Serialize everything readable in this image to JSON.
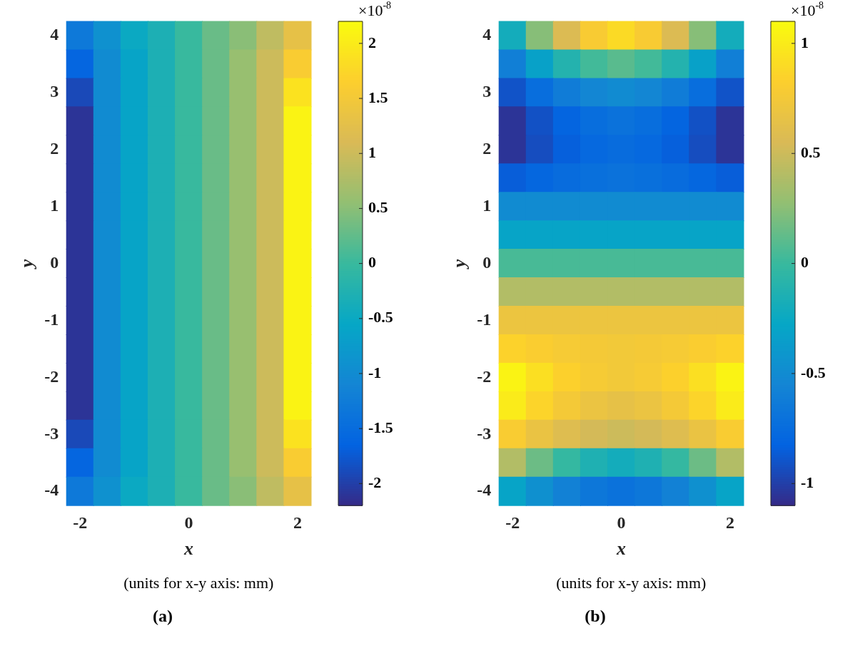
{
  "chart_data": [
    {
      "type": "heatmap",
      "title": "(a)",
      "xlabel": "x",
      "ylabel": "y",
      "clabel": "×10$^{-8}$",
      "annotations": [
        "(units for x-y axis: mm)"
      ],
      "categories": [
        "-2",
        null,
        null,
        null,
        "0",
        null,
        null,
        null,
        "2"
      ],
      "y_categories": [
        "4",
        null,
        "3",
        null,
        "2",
        null,
        "1",
        null,
        "0",
        null,
        "-1",
        null,
        "-2",
        null,
        "-3",
        null,
        "-4"
      ],
      "clim": [
        -2.2,
        2.2
      ],
      "cticks": [
        -2,
        -1.5,
        -1,
        -0.5,
        0,
        0.5,
        1,
        1.5,
        2
      ],
      "cells": [
        [
          -1.3,
          -0.9,
          -0.5,
          -0.3,
          0,
          0.3,
          0.5,
          0.9,
          1.3
        ],
        [
          -1.6,
          -1.0,
          -0.6,
          -0.3,
          0,
          0.3,
          0.6,
          1.0,
          1.6
        ],
        [
          -1.9,
          -1.0,
          -0.6,
          -0.3,
          0,
          0.3,
          0.6,
          1.0,
          1.9
        ],
        [
          -2.1,
          -1.0,
          -0.6,
          -0.3,
          0,
          0.3,
          0.6,
          1.0,
          2.1
        ],
        [
          -2.1,
          -1.0,
          -0.6,
          -0.3,
          0,
          0.3,
          0.6,
          1.0,
          2.1
        ],
        [
          -2.1,
          -1.0,
          -0.6,
          -0.3,
          0,
          0.3,
          0.6,
          1.0,
          2.1
        ],
        [
          -2.1,
          -1.0,
          -0.6,
          -0.3,
          0,
          0.3,
          0.6,
          1.0,
          2.1
        ],
        [
          -2.1,
          -1.0,
          -0.6,
          -0.3,
          0,
          0.3,
          0.6,
          1.0,
          2.1
        ],
        [
          -2.1,
          -1.0,
          -0.6,
          -0.3,
          0,
          0.3,
          0.6,
          1.0,
          2.1
        ],
        [
          -2.1,
          -1.0,
          -0.6,
          -0.3,
          0,
          0.3,
          0.6,
          1.0,
          2.1
        ],
        [
          -2.1,
          -1.0,
          -0.6,
          -0.3,
          0,
          0.3,
          0.6,
          1.0,
          2.1
        ],
        [
          -2.1,
          -1.0,
          -0.6,
          -0.3,
          0,
          0.3,
          0.6,
          1.0,
          2.1
        ],
        [
          -2.1,
          -1.0,
          -0.6,
          -0.3,
          0,
          0.3,
          0.6,
          1.0,
          2.1
        ],
        [
          -2.1,
          -1.0,
          -0.6,
          -0.3,
          0,
          0.3,
          0.6,
          1.0,
          2.1
        ],
        [
          -1.9,
          -1.0,
          -0.6,
          -0.3,
          0,
          0.3,
          0.6,
          1.0,
          1.9
        ],
        [
          -1.6,
          -1.0,
          -0.6,
          -0.3,
          0,
          0.3,
          0.6,
          1.0,
          1.6
        ],
        [
          -1.3,
          -0.9,
          -0.5,
          -0.3,
          0,
          0.3,
          0.5,
          0.9,
          1.3
        ]
      ]
    },
    {
      "type": "heatmap",
      "title": "(b)",
      "xlabel": "x",
      "ylabel": "y",
      "clabel": "×10$^{-8}$",
      "annotations": [
        "(units for x-y axis: mm)"
      ],
      "categories": [
        "-2",
        null,
        null,
        null,
        "0",
        null,
        null,
        null,
        "2"
      ],
      "y_categories": [
        "4",
        null,
        "3",
        null,
        "2",
        null,
        "1",
        null,
        "0",
        null,
        "-1",
        null,
        "-2",
        null,
        "-3",
        null,
        "-4"
      ],
      "clim": [
        -1.1,
        1.1
      ],
      "cticks": [
        -1,
        -0.5,
        0,
        0.5,
        1
      ],
      "cells": [
        [
          -0.2,
          0.24,
          0.57,
          0.79,
          0.9,
          0.79,
          0.57,
          0.24,
          -0.2
        ],
        [
          -0.6,
          -0.32,
          -0.11,
          0.03,
          0.1,
          0.03,
          -0.11,
          -0.32,
          -0.6
        ],
        [
          -0.9,
          -0.74,
          -0.62,
          -0.54,
          -0.5,
          -0.54,
          -0.62,
          -0.74,
          -0.9
        ],
        [
          -1.05,
          -0.91,
          -0.81,
          -0.74,
          -0.7,
          -0.74,
          -0.81,
          -0.91,
          -1.05
        ],
        [
          -1.05,
          -0.93,
          -0.84,
          -0.78,
          -0.75,
          -0.78,
          -0.84,
          -0.93,
          -1.05
        ],
        [
          -0.85,
          -0.79,
          -0.75,
          -0.72,
          -0.7,
          -0.72,
          -0.75,
          -0.79,
          -0.85
        ],
        [
          -0.5,
          -0.5,
          -0.5,
          -0.5,
          -0.5,
          -0.5,
          -0.5,
          -0.5,
          -0.5
        ],
        [
          -0.3,
          -0.3,
          -0.3,
          -0.3,
          -0.3,
          -0.3,
          -0.3,
          -0.3,
          -0.3
        ],
        [
          0.05,
          0.05,
          0.05,
          0.05,
          0.05,
          0.05,
          0.05,
          0.05,
          0.05
        ],
        [
          0.4,
          0.4,
          0.4,
          0.4,
          0.4,
          0.4,
          0.4,
          0.4,
          0.4
        ],
        [
          0.7,
          0.7,
          0.7,
          0.7,
          0.7,
          0.7,
          0.7,
          0.7,
          0.7
        ],
        [
          0.85,
          0.81,
          0.78,
          0.76,
          0.75,
          0.76,
          0.78,
          0.81,
          0.85
        ],
        [
          1.05,
          0.93,
          0.84,
          0.78,
          0.75,
          0.78,
          0.84,
          0.93,
          1.05
        ],
        [
          1.0,
          0.86,
          0.76,
          0.69,
          0.65,
          0.69,
          0.76,
          0.86,
          1.0
        ],
        [
          0.8,
          0.68,
          0.59,
          0.53,
          0.5,
          0.53,
          0.59,
          0.68,
          0.8
        ],
        [
          0.4,
          0.16,
          -0.02,
          -0.14,
          -0.2,
          -0.14,
          -0.02,
          0.16,
          0.4
        ],
        [
          -0.3,
          -0.46,
          -0.58,
          -0.66,
          -0.7,
          -0.66,
          -0.58,
          -0.46,
          -0.3
        ]
      ]
    }
  ]
}
